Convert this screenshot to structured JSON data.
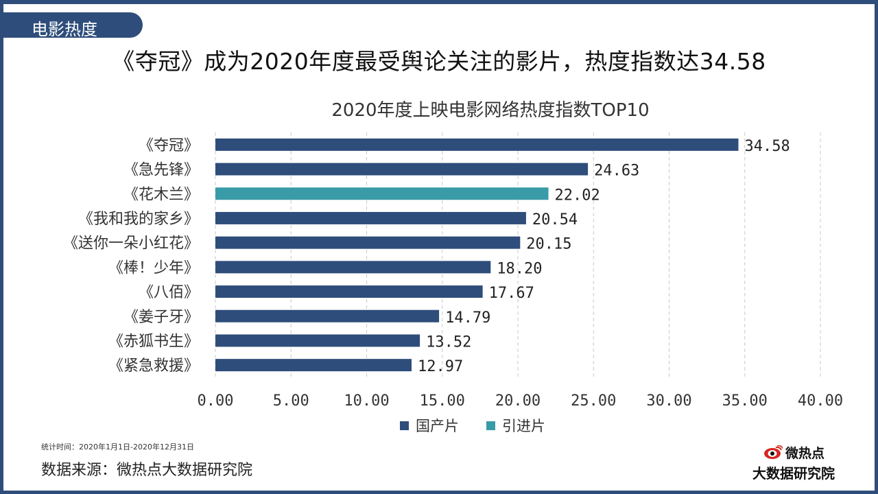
{
  "header": {
    "tag": "电影热度",
    "headline": "《夺冠》成为2020年度最受舆论关注的影片，热度指数达34.58"
  },
  "chart_data": {
    "type": "bar",
    "orientation": "horizontal",
    "title": "2020年度上映电影网络热度指数TOP10",
    "categories": [
      "《夺冠》",
      "《急先锋》",
      "《花木兰》",
      "《我和我的家乡》",
      "《送你一朵小红花》",
      "《棒！少年》",
      "《八佰》",
      "《姜子牙》",
      "《赤狐书生》",
      "《紧急救援》"
    ],
    "values": [
      34.58,
      24.63,
      22.02,
      20.54,
      20.15,
      18.2,
      17.67,
      14.79,
      13.52,
      12.97
    ],
    "value_labels": [
      "34.58",
      "24.63",
      "22.02",
      "20.54",
      "20.15",
      "18.20",
      "17.67",
      "14.79",
      "13.52",
      "12.97"
    ],
    "groups": [
      "国产片",
      "国产片",
      "引进片",
      "国产片",
      "国产片",
      "国产片",
      "国产片",
      "国产片",
      "国产片",
      "国产片"
    ],
    "legend": [
      {
        "name": "国产片",
        "color": "#2e4d7b"
      },
      {
        "name": "引进片",
        "color": "#3a9ba8"
      }
    ],
    "xlim": [
      0,
      40
    ],
    "xticks": [
      "0.00",
      "5.00",
      "10.00",
      "15.00",
      "20.00",
      "25.00",
      "30.00",
      "35.00",
      "40.00"
    ],
    "grid": "vertical dashed",
    "legend_position": "bottom"
  },
  "footer": {
    "note": "统计时间：2020年1月1日-2020年12月31日",
    "source": "数据来源：微热点大数据研究院",
    "logo_name": "微热点",
    "logo_sub": "大数据研究院"
  }
}
